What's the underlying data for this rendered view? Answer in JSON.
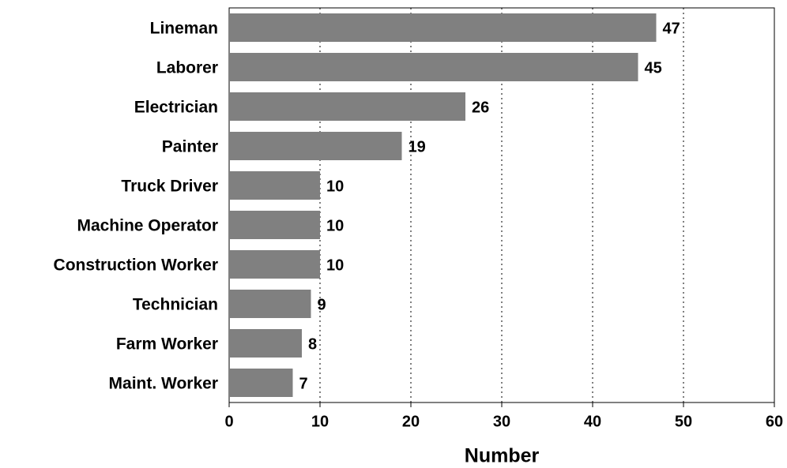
{
  "chart_data": {
    "type": "bar",
    "orientation": "horizontal",
    "categories": [
      "Lineman",
      "Laborer",
      "Electrician",
      "Painter",
      "Truck Driver",
      "Machine Operator",
      "Construction Worker",
      "Technician",
      "Farm Worker",
      "Maint. Worker"
    ],
    "values": [
      47,
      45,
      26,
      19,
      10,
      10,
      10,
      9,
      8,
      7
    ],
    "color": "#808080",
    "x_label": "Number",
    "xlim": [
      0,
      60
    ],
    "xticks": [
      0,
      10,
      20,
      30,
      40,
      50,
      60
    ],
    "grid": true
  }
}
